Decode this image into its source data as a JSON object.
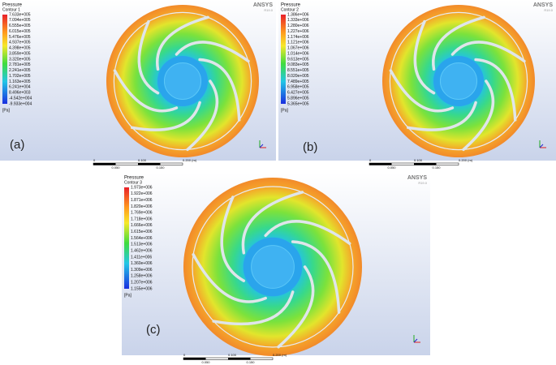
{
  "panels": [
    {
      "label": "(a)",
      "brand": "ANSYS",
      "version": "R19.0",
      "legend": {
        "title": "Pressure",
        "subtitle": "Contour 1",
        "unit": "[Pa]",
        "values": [
          "7.633e+005",
          "7.094e+005",
          "6.555e+005",
          "6.015e+005",
          "5.476e+005",
          "4.937e+005",
          "4.398e+005",
          "3.859e+005",
          "3.320e+005",
          "2.781e+005",
          "2.241e+005",
          "1.702e+005",
          "1.163e+005",
          "6.241e+004",
          "8.496e+003",
          "-4.542e+004",
          "-9.933e+004"
        ]
      },
      "scale": {
        "top": [
          "0",
          "0.100",
          "0.200 (m)"
        ],
        "bottom": [
          "0.050",
          "0.150"
        ]
      }
    },
    {
      "label": "(b)",
      "brand": "ANSYS",
      "version": "R19.0",
      "legend": {
        "title": "Pressure",
        "subtitle": "Contour 2",
        "unit": "[Pa]",
        "values": [
          "1.386e+006",
          "1.333e+006",
          "1.280e+006",
          "1.227e+006",
          "1.174e+006",
          "1.121e+006",
          "1.067e+006",
          "1.014e+006",
          "9.613e+005",
          "9.083e+005",
          "8.551e+005",
          "8.020e+005",
          "7.489e+005",
          "6.958e+005",
          "6.427e+005",
          "5.896e+005",
          "5.365e+005"
        ]
      },
      "scale": {
        "top": [
          "0",
          "0.100",
          "0.200 (m)"
        ],
        "bottom": [
          "0.050",
          "0.150"
        ]
      }
    },
    {
      "label": "(c)",
      "brand": "ANSYS",
      "version": "R19.0",
      "legend": {
        "title": "Pressure",
        "subtitle": "Contour 3",
        "unit": "[Pa]",
        "values": [
          "1.973e+006",
          "1.922e+006",
          "1.871e+006",
          "1.820e+006",
          "1.769e+006",
          "1.718e+006",
          "1.666e+006",
          "1.615e+006",
          "1.564e+006",
          "1.513e+006",
          "1.462e+006",
          "1.411e+006",
          "1.360e+006",
          "1.309e+006",
          "1.258e+006",
          "1.207e+006",
          "1.155e+006"
        ]
      },
      "scale": {
        "top": [
          "0",
          "0.100",
          "0.200 (m)"
        ],
        "bottom": [
          "0.050",
          "0.150"
        ]
      }
    }
  ]
}
